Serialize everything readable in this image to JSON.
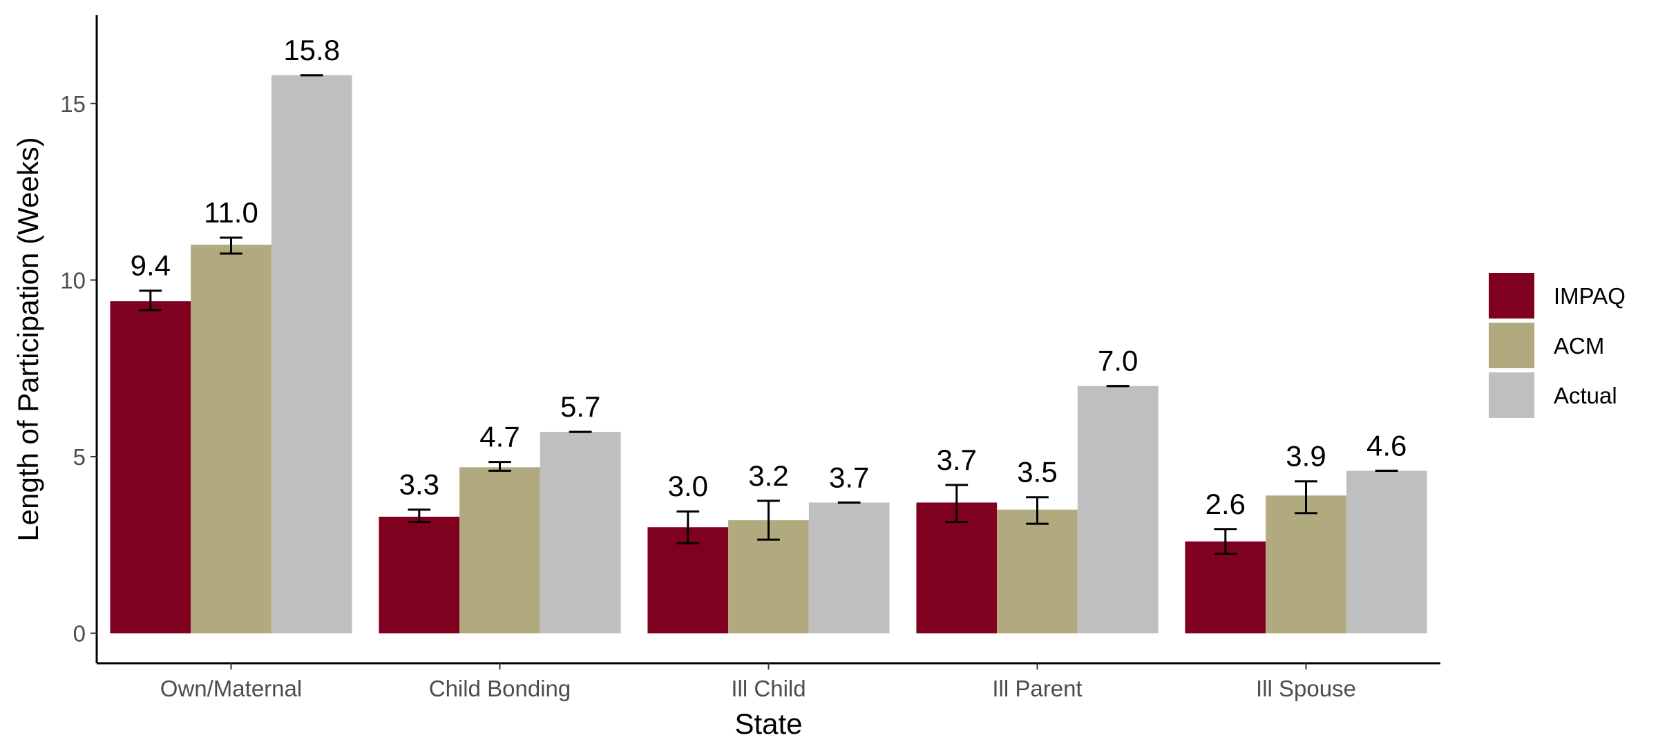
{
  "chart_data": {
    "type": "bar",
    "xlabel": "State",
    "ylabel": "Length of Participation (Weeks)",
    "ylim": [
      -0.85,
      17.5
    ],
    "yticks": [
      0,
      5,
      10,
      15
    ],
    "categories": [
      "Own/Maternal",
      "Child Bonding",
      "Ill Child",
      "Ill Parent",
      "Ill Spouse"
    ],
    "series": [
      {
        "name": "IMPAQ",
        "color": "#800020",
        "values": [
          9.4,
          3.3,
          3.0,
          3.7,
          2.6
        ],
        "labels": [
          "9.4",
          "3.3",
          "3.0",
          "3.7",
          "2.6"
        ],
        "error_low": [
          9.15,
          3.15,
          2.55,
          3.15,
          2.25
        ],
        "error_high": [
          9.7,
          3.5,
          3.45,
          4.2,
          2.95
        ]
      },
      {
        "name": "ACM",
        "color": "#B2AA7F",
        "values": [
          11.0,
          4.7,
          3.2,
          3.5,
          3.9
        ],
        "labels": [
          "11.0",
          "4.7",
          "3.2",
          "3.5",
          "3.9"
        ],
        "error_low": [
          10.75,
          4.6,
          2.65,
          3.1,
          3.4
        ],
        "error_high": [
          11.2,
          4.85,
          3.75,
          3.85,
          4.3
        ]
      },
      {
        "name": "Actual",
        "color": "#BFBFBF",
        "values": [
          15.8,
          5.7,
          3.7,
          7.0,
          4.6
        ],
        "labels": [
          "15.8",
          "5.7",
          "3.7",
          "7.0",
          "4.6"
        ],
        "error_low": [
          15.8,
          5.7,
          3.7,
          7.0,
          4.6
        ],
        "error_high": [
          15.8,
          5.7,
          3.7,
          7.0,
          4.6
        ]
      }
    ],
    "legend": {
      "position": "right"
    },
    "grid": false
  }
}
